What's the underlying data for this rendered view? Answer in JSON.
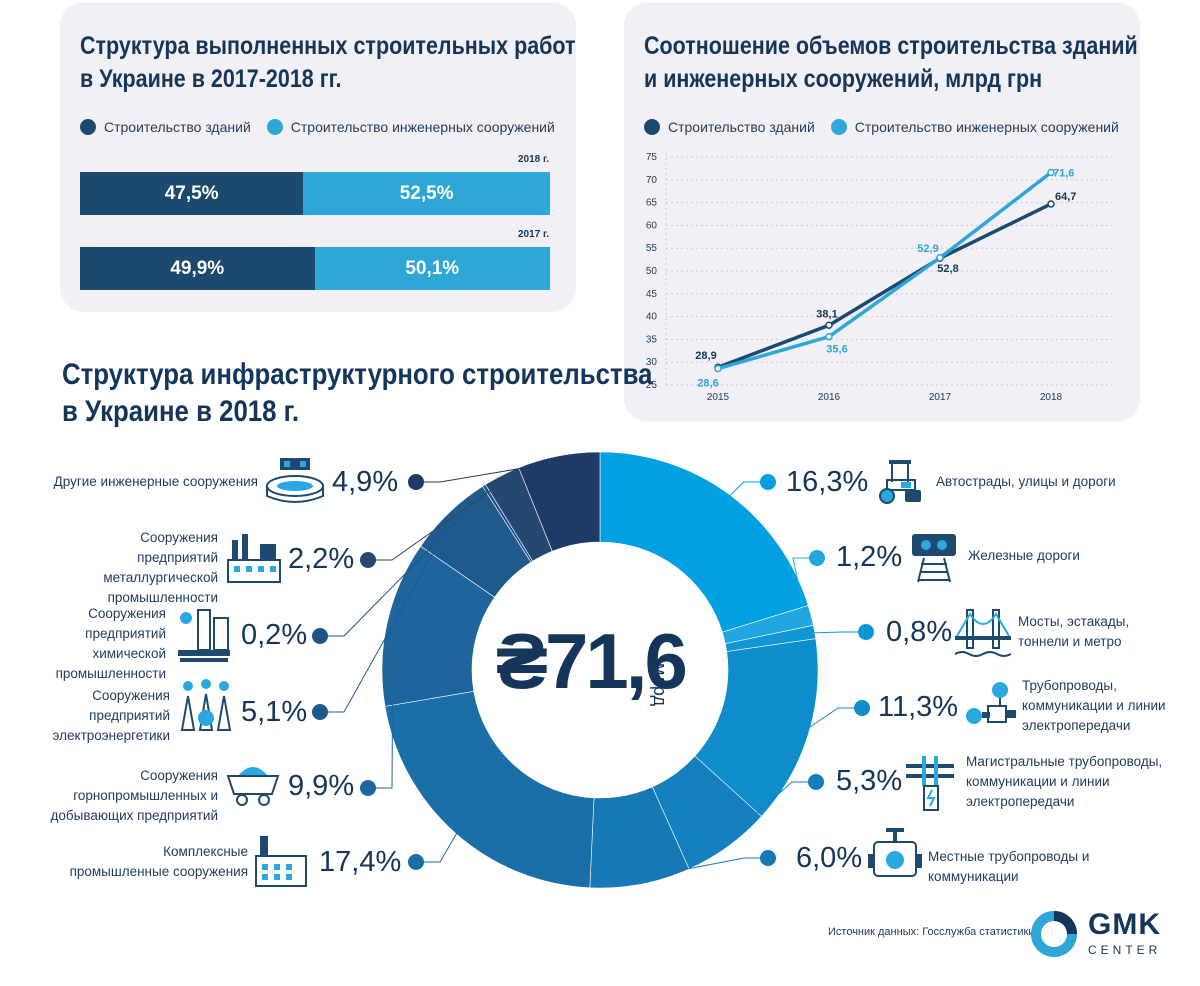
{
  "panel1": {
    "title_line1": "Структура выполненных строительных работ",
    "title_line2": "в Украине в 2017-2018 гг.",
    "legend": [
      {
        "label": "Строительство зданий",
        "color": "#1b4a6e"
      },
      {
        "label": "Строительство инженерных сооружений",
        "color": "#2ea6d8"
      }
    ]
  },
  "panel2": {
    "title_line1": "Соотношение объемов строительства зданий",
    "title_line2": "и инженерных сооружений, млрд грн",
    "legend": [
      {
        "label": "Строительство зданий",
        "color": "#1b4a6e"
      },
      {
        "label": "Строительство инженерных сооружений",
        "color": "#2ea6d8"
      }
    ]
  },
  "donut": {
    "title_line1": "Структура инфраструктурного строительства",
    "title_line2": "в Украине в 2018 г.",
    "center_value": "₴71,6",
    "center_unit": "млрд"
  },
  "source": "Источник данных:  Госслужба статистики",
  "brand": {
    "name": "GMK",
    "sub": "CENTER"
  },
  "chart_data": [
    {
      "type": "bar",
      "stacked": true,
      "orientation": "horizontal",
      "categories": [
        "2018 г.",
        "2017 г."
      ],
      "series": [
        {
          "name": "Строительство зданий",
          "values": [
            47.5,
            49.9
          ],
          "labels": [
            "47,5%",
            "49,9%"
          ],
          "color": "#1b4a6e"
        },
        {
          "name": "Строительство инженерных сооружений",
          "values": [
            52.5,
            50.1
          ],
          "labels": [
            "52,5%",
            "50,1%"
          ],
          "color": "#2ea6d8"
        }
      ]
    },
    {
      "type": "line",
      "x": [
        "2015",
        "2016",
        "2017",
        "2018"
      ],
      "yticks": [
        "25",
        "30",
        "35",
        "40",
        "45",
        "50",
        "55",
        "60",
        "65",
        "70",
        "75"
      ],
      "ylim": [
        25,
        75
      ],
      "series": [
        {
          "name": "Строительство зданий",
          "values": [
            28.9,
            38.1,
            52.8,
            64.7
          ],
          "labels": [
            "28,9",
            "38,1",
            "52,8",
            "64,7"
          ],
          "color": "#1b4a6e"
        },
        {
          "name": "Строительство инженерных сооружений",
          "values": [
            28.6,
            35.6,
            52.9,
            71.6
          ],
          "labels": [
            "28,6",
            "35,6",
            "52,9",
            "71,6"
          ],
          "color": "#2ea6d8"
        }
      ]
    },
    {
      "type": "pie",
      "donut": true,
      "slices": [
        {
          "label": "Автострады, улицы и дороги",
          "value": 16.3,
          "pct": "16,3%",
          "color": "#00a0e3",
          "icon": "road-roller-icon"
        },
        {
          "label": "Железные дороги",
          "value": 1.2,
          "pct": "1,2%",
          "color": "#21a7df",
          "icon": "railway-icon"
        },
        {
          "label": "Мосты, эстакады, тоннели и метро",
          "value": 0.8,
          "pct": "0,8%",
          "color": "#0f97d5",
          "icon": "bridge-icon"
        },
        {
          "label": "Трубопроводы, коммуникации и линии электропередачи",
          "value": 11.3,
          "pct": "11,3%",
          "color": "#0f8ccb",
          "icon": "pipeline-icon"
        },
        {
          "label": "Магистральные трубопроводы, коммуникации и линии электропередачи",
          "value": 5.3,
          "pct": "5,3%",
          "color": "#1480be",
          "icon": "power-line-icon"
        },
        {
          "label": "Местные трубопроводы и коммуникации",
          "value": 6.0,
          "pct": "6,0%",
          "color": "#1678b4",
          "icon": "valve-icon"
        },
        {
          "label": "Комплексные промышленные сооружения",
          "value": 17.4,
          "pct": "17,4%",
          "color": "#1a6fa8",
          "icon": "industrial-complex-icon"
        },
        {
          "label": "Сооружения горнопромышленных и добывающих предприятий",
          "value": 9.9,
          "pct": "9,9%",
          "color": "#1d659c",
          "icon": "mining-cart-icon"
        },
        {
          "label": "Сооружения предприятий электроэнергетики",
          "value": 5.1,
          "pct": "5,1%",
          "color": "#1f5a8c",
          "icon": "power-plant-icon"
        },
        {
          "label": "Сооружения предприятий химической промышленности",
          "value": 0.2,
          "pct": "0,2%",
          "color": "#1f5283",
          "icon": "chemical-plant-icon"
        },
        {
          "label": "Сооружения предприятий металлургической промышленности",
          "value": 2.2,
          "pct": "2,2%",
          "color": "#24486f",
          "icon": "steel-plant-icon"
        },
        {
          "label": "Другие инженерные сооружения",
          "value": 4.9,
          "pct": "4,9%",
          "color": "#1f3a66",
          "icon": "stadium-icon"
        }
      ]
    }
  ]
}
